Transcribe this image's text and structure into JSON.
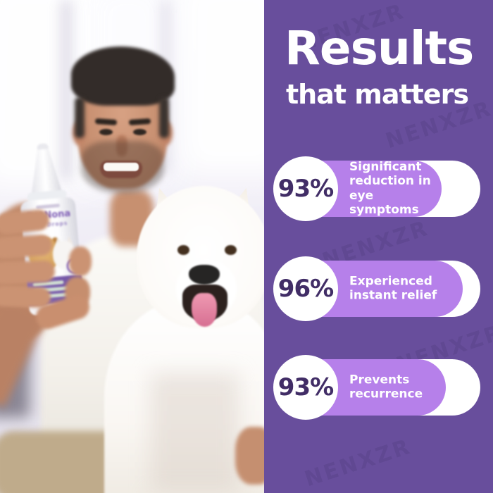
{
  "panel": {
    "title_line1": "Results",
    "title_line2": "that matters",
    "stats": [
      {
        "value": "93%",
        "label": "Significant reduction in eye symptoms"
      },
      {
        "value": "96%",
        "label": "Experienced instant relief"
      },
      {
        "value": "93%",
        "label": "Prevents recurrence"
      }
    ],
    "colors": {
      "panel_background": "#684E9C",
      "pill_front": "#B680EA",
      "pill_back": "#FFFFFF",
      "stat_value_text": "#412D66",
      "stat_label_text": "#FFFFFF",
      "title_text": "#FFFFFF"
    }
  },
  "watermark": {
    "text": "NENXZR"
  },
  "photo": {
    "description": "Smiling man holding a PetNona eye-drops bottle beside a happy white Samoyed dog in a bright room",
    "product": {
      "name": "PetNona",
      "subtitle": "EYE Drops"
    }
  }
}
